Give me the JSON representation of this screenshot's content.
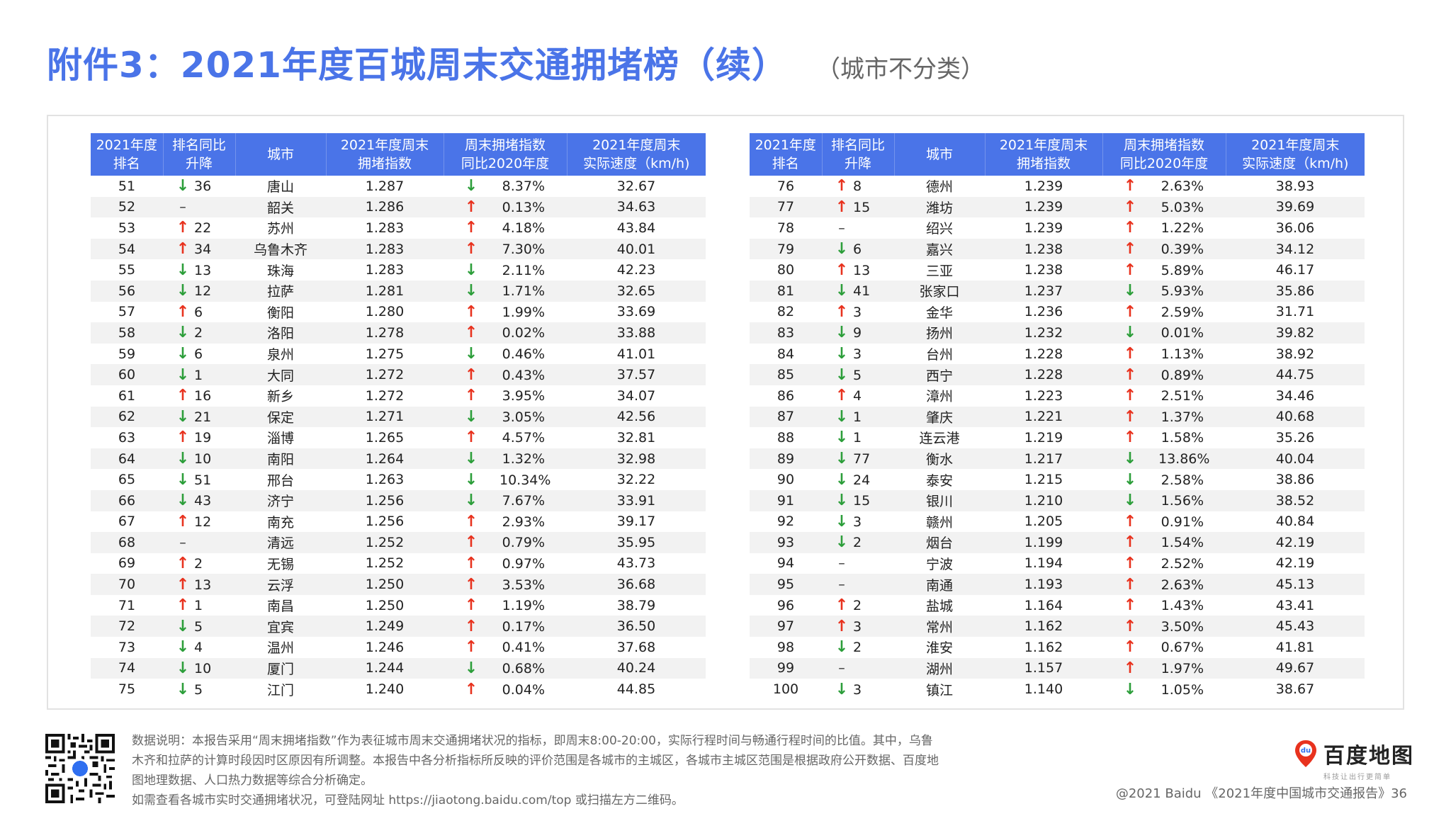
{
  "title": {
    "main": "附件3：2021年度百城周末交通拥堵榜（续）",
    "sub": "（城市不分类）"
  },
  "table": {
    "headers": {
      "rank": [
        "2021年度",
        "排名"
      ],
      "change": [
        "排名同比",
        "升降"
      ],
      "city": [
        "城市"
      ],
      "index": [
        "2021年度周末",
        "拥堵指数"
      ],
      "yoy": [
        "周末拥堵指数",
        "同比2020年度"
      ],
      "speed": [
        "2021年度周末",
        "实际速度（km/h)"
      ]
    },
    "left_rows": [
      {
        "rank": "51",
        "dir": "down",
        "change": "36",
        "city": "唐山",
        "index": "1.287",
        "yoy_dir": "down",
        "yoy": "8.37%",
        "speed": "32.67"
      },
      {
        "rank": "52",
        "dir": "none",
        "change": "",
        "city": "韶关",
        "index": "1.286",
        "yoy_dir": "up",
        "yoy": "0.13%",
        "speed": "34.63"
      },
      {
        "rank": "53",
        "dir": "up",
        "change": "22",
        "city": "苏州",
        "index": "1.283",
        "yoy_dir": "up",
        "yoy": "4.18%",
        "speed": "43.84"
      },
      {
        "rank": "54",
        "dir": "up",
        "change": "34",
        "city": "乌鲁木齐",
        "index": "1.283",
        "yoy_dir": "up",
        "yoy": "7.30%",
        "speed": "40.01"
      },
      {
        "rank": "55",
        "dir": "down",
        "change": "13",
        "city": "珠海",
        "index": "1.283",
        "yoy_dir": "down",
        "yoy": "2.11%",
        "speed": "42.23"
      },
      {
        "rank": "56",
        "dir": "down",
        "change": "12",
        "city": "拉萨",
        "index": "1.281",
        "yoy_dir": "down",
        "yoy": "1.71%",
        "speed": "32.65"
      },
      {
        "rank": "57",
        "dir": "up",
        "change": "6",
        "city": "衡阳",
        "index": "1.280",
        "yoy_dir": "up",
        "yoy": "1.99%",
        "speed": "33.69"
      },
      {
        "rank": "58",
        "dir": "down",
        "change": "2",
        "city": "洛阳",
        "index": "1.278",
        "yoy_dir": "up",
        "yoy": "0.02%",
        "speed": "33.88"
      },
      {
        "rank": "59",
        "dir": "down",
        "change": "6",
        "city": "泉州",
        "index": "1.275",
        "yoy_dir": "down",
        "yoy": "0.46%",
        "speed": "41.01"
      },
      {
        "rank": "60",
        "dir": "down",
        "change": "1",
        "city": "大同",
        "index": "1.272",
        "yoy_dir": "up",
        "yoy": "0.43%",
        "speed": "37.57"
      },
      {
        "rank": "61",
        "dir": "up",
        "change": "16",
        "city": "新乡",
        "index": "1.272",
        "yoy_dir": "up",
        "yoy": "3.95%",
        "speed": "34.07"
      },
      {
        "rank": "62",
        "dir": "down",
        "change": "21",
        "city": "保定",
        "index": "1.271",
        "yoy_dir": "down",
        "yoy": "3.05%",
        "speed": "42.56"
      },
      {
        "rank": "63",
        "dir": "up",
        "change": "19",
        "city": "淄博",
        "index": "1.265",
        "yoy_dir": "up",
        "yoy": "4.57%",
        "speed": "32.81"
      },
      {
        "rank": "64",
        "dir": "down",
        "change": "10",
        "city": "南阳",
        "index": "1.264",
        "yoy_dir": "down",
        "yoy": "1.32%",
        "speed": "32.98"
      },
      {
        "rank": "65",
        "dir": "down",
        "change": "51",
        "city": "邢台",
        "index": "1.263",
        "yoy_dir": "down",
        "yoy": "10.34%",
        "speed": "32.22"
      },
      {
        "rank": "66",
        "dir": "down",
        "change": "43",
        "city": "济宁",
        "index": "1.256",
        "yoy_dir": "down",
        "yoy": "7.67%",
        "speed": "33.91"
      },
      {
        "rank": "67",
        "dir": "up",
        "change": "12",
        "city": "南充",
        "index": "1.256",
        "yoy_dir": "up",
        "yoy": "2.93%",
        "speed": "39.17"
      },
      {
        "rank": "68",
        "dir": "none",
        "change": "",
        "city": "清远",
        "index": "1.252",
        "yoy_dir": "up",
        "yoy": "0.79%",
        "speed": "35.95"
      },
      {
        "rank": "69",
        "dir": "up",
        "change": "2",
        "city": "无锡",
        "index": "1.252",
        "yoy_dir": "up",
        "yoy": "0.97%",
        "speed": "43.73"
      },
      {
        "rank": "70",
        "dir": "up",
        "change": "13",
        "city": "云浮",
        "index": "1.250",
        "yoy_dir": "up",
        "yoy": "3.53%",
        "speed": "36.68"
      },
      {
        "rank": "71",
        "dir": "up",
        "change": "1",
        "city": "南昌",
        "index": "1.250",
        "yoy_dir": "up",
        "yoy": "1.19%",
        "speed": "38.79"
      },
      {
        "rank": "72",
        "dir": "down",
        "change": "5",
        "city": "宜宾",
        "index": "1.249",
        "yoy_dir": "up",
        "yoy": "0.17%",
        "speed": "36.50"
      },
      {
        "rank": "73",
        "dir": "down",
        "change": "4",
        "city": "温州",
        "index": "1.246",
        "yoy_dir": "up",
        "yoy": "0.41%",
        "speed": "37.68"
      },
      {
        "rank": "74",
        "dir": "down",
        "change": "10",
        "city": "厦门",
        "index": "1.244",
        "yoy_dir": "down",
        "yoy": "0.68%",
        "speed": "40.24"
      },
      {
        "rank": "75",
        "dir": "down",
        "change": "5",
        "city": "江门",
        "index": "1.240",
        "yoy_dir": "up",
        "yoy": "0.04%",
        "speed": "44.85"
      }
    ],
    "right_rows": [
      {
        "rank": "76",
        "dir": "up",
        "change": "8",
        "city": "德州",
        "index": "1.239",
        "yoy_dir": "up",
        "yoy": "2.63%",
        "speed": "38.93"
      },
      {
        "rank": "77",
        "dir": "up",
        "change": "15",
        "city": "潍坊",
        "index": "1.239",
        "yoy_dir": "up",
        "yoy": "5.03%",
        "speed": "39.69"
      },
      {
        "rank": "78",
        "dir": "none",
        "change": "",
        "city": "绍兴",
        "index": "1.239",
        "yoy_dir": "up",
        "yoy": "1.22%",
        "speed": "36.06"
      },
      {
        "rank": "79",
        "dir": "down",
        "change": "6",
        "city": "嘉兴",
        "index": "1.238",
        "yoy_dir": "up",
        "yoy": "0.39%",
        "speed": "34.12"
      },
      {
        "rank": "80",
        "dir": "up",
        "change": "13",
        "city": "三亚",
        "index": "1.238",
        "yoy_dir": "up",
        "yoy": "5.89%",
        "speed": "46.17"
      },
      {
        "rank": "81",
        "dir": "down",
        "change": "41",
        "city": "张家口",
        "index": "1.237",
        "yoy_dir": "down",
        "yoy": "5.93%",
        "speed": "35.86"
      },
      {
        "rank": "82",
        "dir": "up",
        "change": "3",
        "city": "金华",
        "index": "1.236",
        "yoy_dir": "up",
        "yoy": "2.59%",
        "speed": "31.71"
      },
      {
        "rank": "83",
        "dir": "down",
        "change": "9",
        "city": "扬州",
        "index": "1.232",
        "yoy_dir": "down",
        "yoy": "0.01%",
        "speed": "39.82"
      },
      {
        "rank": "84",
        "dir": "down",
        "change": "3",
        "city": "台州",
        "index": "1.228",
        "yoy_dir": "up",
        "yoy": "1.13%",
        "speed": "38.92"
      },
      {
        "rank": "85",
        "dir": "down",
        "change": "5",
        "city": "西宁",
        "index": "1.228",
        "yoy_dir": "up",
        "yoy": "0.89%",
        "speed": "44.75"
      },
      {
        "rank": "86",
        "dir": "up",
        "change": "4",
        "city": "漳州",
        "index": "1.223",
        "yoy_dir": "up",
        "yoy": "2.51%",
        "speed": "34.46"
      },
      {
        "rank": "87",
        "dir": "down",
        "change": "1",
        "city": "肇庆",
        "index": "1.221",
        "yoy_dir": "up",
        "yoy": "1.37%",
        "speed": "40.68"
      },
      {
        "rank": "88",
        "dir": "down",
        "change": "1",
        "city": "连云港",
        "index": "1.219",
        "yoy_dir": "up",
        "yoy": "1.58%",
        "speed": "35.26"
      },
      {
        "rank": "89",
        "dir": "down",
        "change": "77",
        "city": "衡水",
        "index": "1.217",
        "yoy_dir": "down",
        "yoy": "13.86%",
        "speed": "40.04"
      },
      {
        "rank": "90",
        "dir": "down",
        "change": "24",
        "city": "泰安",
        "index": "1.215",
        "yoy_dir": "down",
        "yoy": "2.58%",
        "speed": "38.86"
      },
      {
        "rank": "91",
        "dir": "down",
        "change": "15",
        "city": "银川",
        "index": "1.210",
        "yoy_dir": "down",
        "yoy": "1.56%",
        "speed": "38.52"
      },
      {
        "rank": "92",
        "dir": "down",
        "change": "3",
        "city": "赣州",
        "index": "1.205",
        "yoy_dir": "up",
        "yoy": "0.91%",
        "speed": "40.84"
      },
      {
        "rank": "93",
        "dir": "down",
        "change": "2",
        "city": "烟台",
        "index": "1.199",
        "yoy_dir": "up",
        "yoy": "1.54%",
        "speed": "42.19"
      },
      {
        "rank": "94",
        "dir": "none",
        "change": "",
        "city": "宁波",
        "index": "1.194",
        "yoy_dir": "up",
        "yoy": "2.52%",
        "speed": "42.19"
      },
      {
        "rank": "95",
        "dir": "none",
        "change": "",
        "city": "南通",
        "index": "1.193",
        "yoy_dir": "up",
        "yoy": "2.63%",
        "speed": "45.13"
      },
      {
        "rank": "96",
        "dir": "up",
        "change": "2",
        "city": "盐城",
        "index": "1.164",
        "yoy_dir": "up",
        "yoy": "1.43%",
        "speed": "43.41"
      },
      {
        "rank": "97",
        "dir": "up",
        "change": "3",
        "city": "常州",
        "index": "1.162",
        "yoy_dir": "up",
        "yoy": "3.50%",
        "speed": "45.43"
      },
      {
        "rank": "98",
        "dir": "down",
        "change": "2",
        "city": "淮安",
        "index": "1.162",
        "yoy_dir": "up",
        "yoy": "0.67%",
        "speed": "41.81"
      },
      {
        "rank": "99",
        "dir": "none",
        "change": "",
        "city": "湖州",
        "index": "1.157",
        "yoy_dir": "up",
        "yoy": "1.97%",
        "speed": "49.67"
      },
      {
        "rank": "100",
        "dir": "down",
        "change": "3",
        "city": "镇江",
        "index": "1.140",
        "yoy_dir": "down",
        "yoy": "1.05%",
        "speed": "38.67"
      }
    ]
  },
  "symbols": {
    "up": "↑",
    "down": "↓",
    "none": "–"
  },
  "note": {
    "lines": [
      "数据说明：本报告采用“周末拥堵指数”作为表征城市周末交通拥堵状况的指标，即周末8:00-20:00，实际行程时间与畅通行程时间的比值。其中，乌鲁",
      "木齐和拉萨的计算时段因时区原因有所调整。本报告中各分析指标所反映的评价范围是各城市的主城区，各城市主城区范围是根据政府公开数据、百度地",
      "图地理数据、人口热力数据等综合分析确定。",
      "如需查看各城市实时交通拥堵状况，可登陆网址 https://jiaotong.baidu.com/top 或扫描左方二维码。"
    ]
  },
  "logo": {
    "text": "百度地图",
    "slogan": "科技让出行更简单",
    "pin_label": "du"
  },
  "footer": "@2021 Baidu 《2021年度中国城市交通报告》36",
  "colors": {
    "accent": "#4a74e8",
    "up": "#e8321e",
    "down": "#2c9e3a",
    "stripe": "#f2f2f2"
  }
}
